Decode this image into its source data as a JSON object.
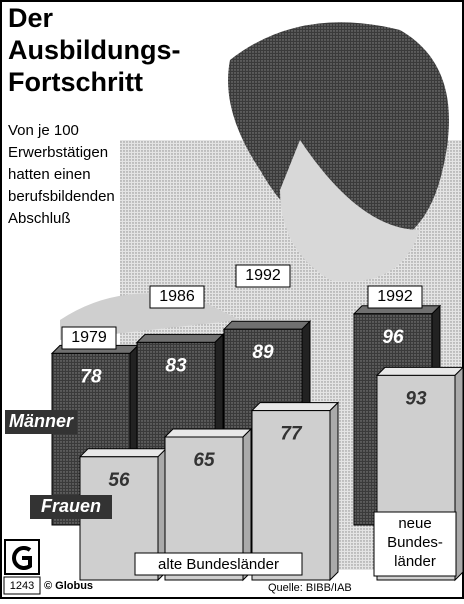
{
  "chart_data": {
    "type": "bar",
    "title": [
      "Der",
      "Ausbildungs-",
      "Fortschritt"
    ],
    "subtitle": [
      "Von je 100",
      "Erwerbstätigen",
      "hatten einen",
      "berufsbildenden",
      "Abschluß"
    ],
    "categories": [
      "1979",
      "1986",
      "1992",
      "1992"
    ],
    "series": [
      {
        "name": "Männer",
        "color": "#4a4a4a",
        "values": [
          78,
          83,
          89,
          96
        ]
      },
      {
        "name": "Frauen",
        "color": "#cfcfcf",
        "values": [
          56,
          65,
          77,
          93
        ]
      }
    ],
    "groups": [
      {
        "label": [
          "alte Bundesländer"
        ]
      },
      {
        "label": [
          "neue",
          "Bundes-",
          "länder"
        ]
      }
    ],
    "code": "1243",
    "publisher": "© Globus",
    "source": "Quelle: BIBB/IAB"
  }
}
